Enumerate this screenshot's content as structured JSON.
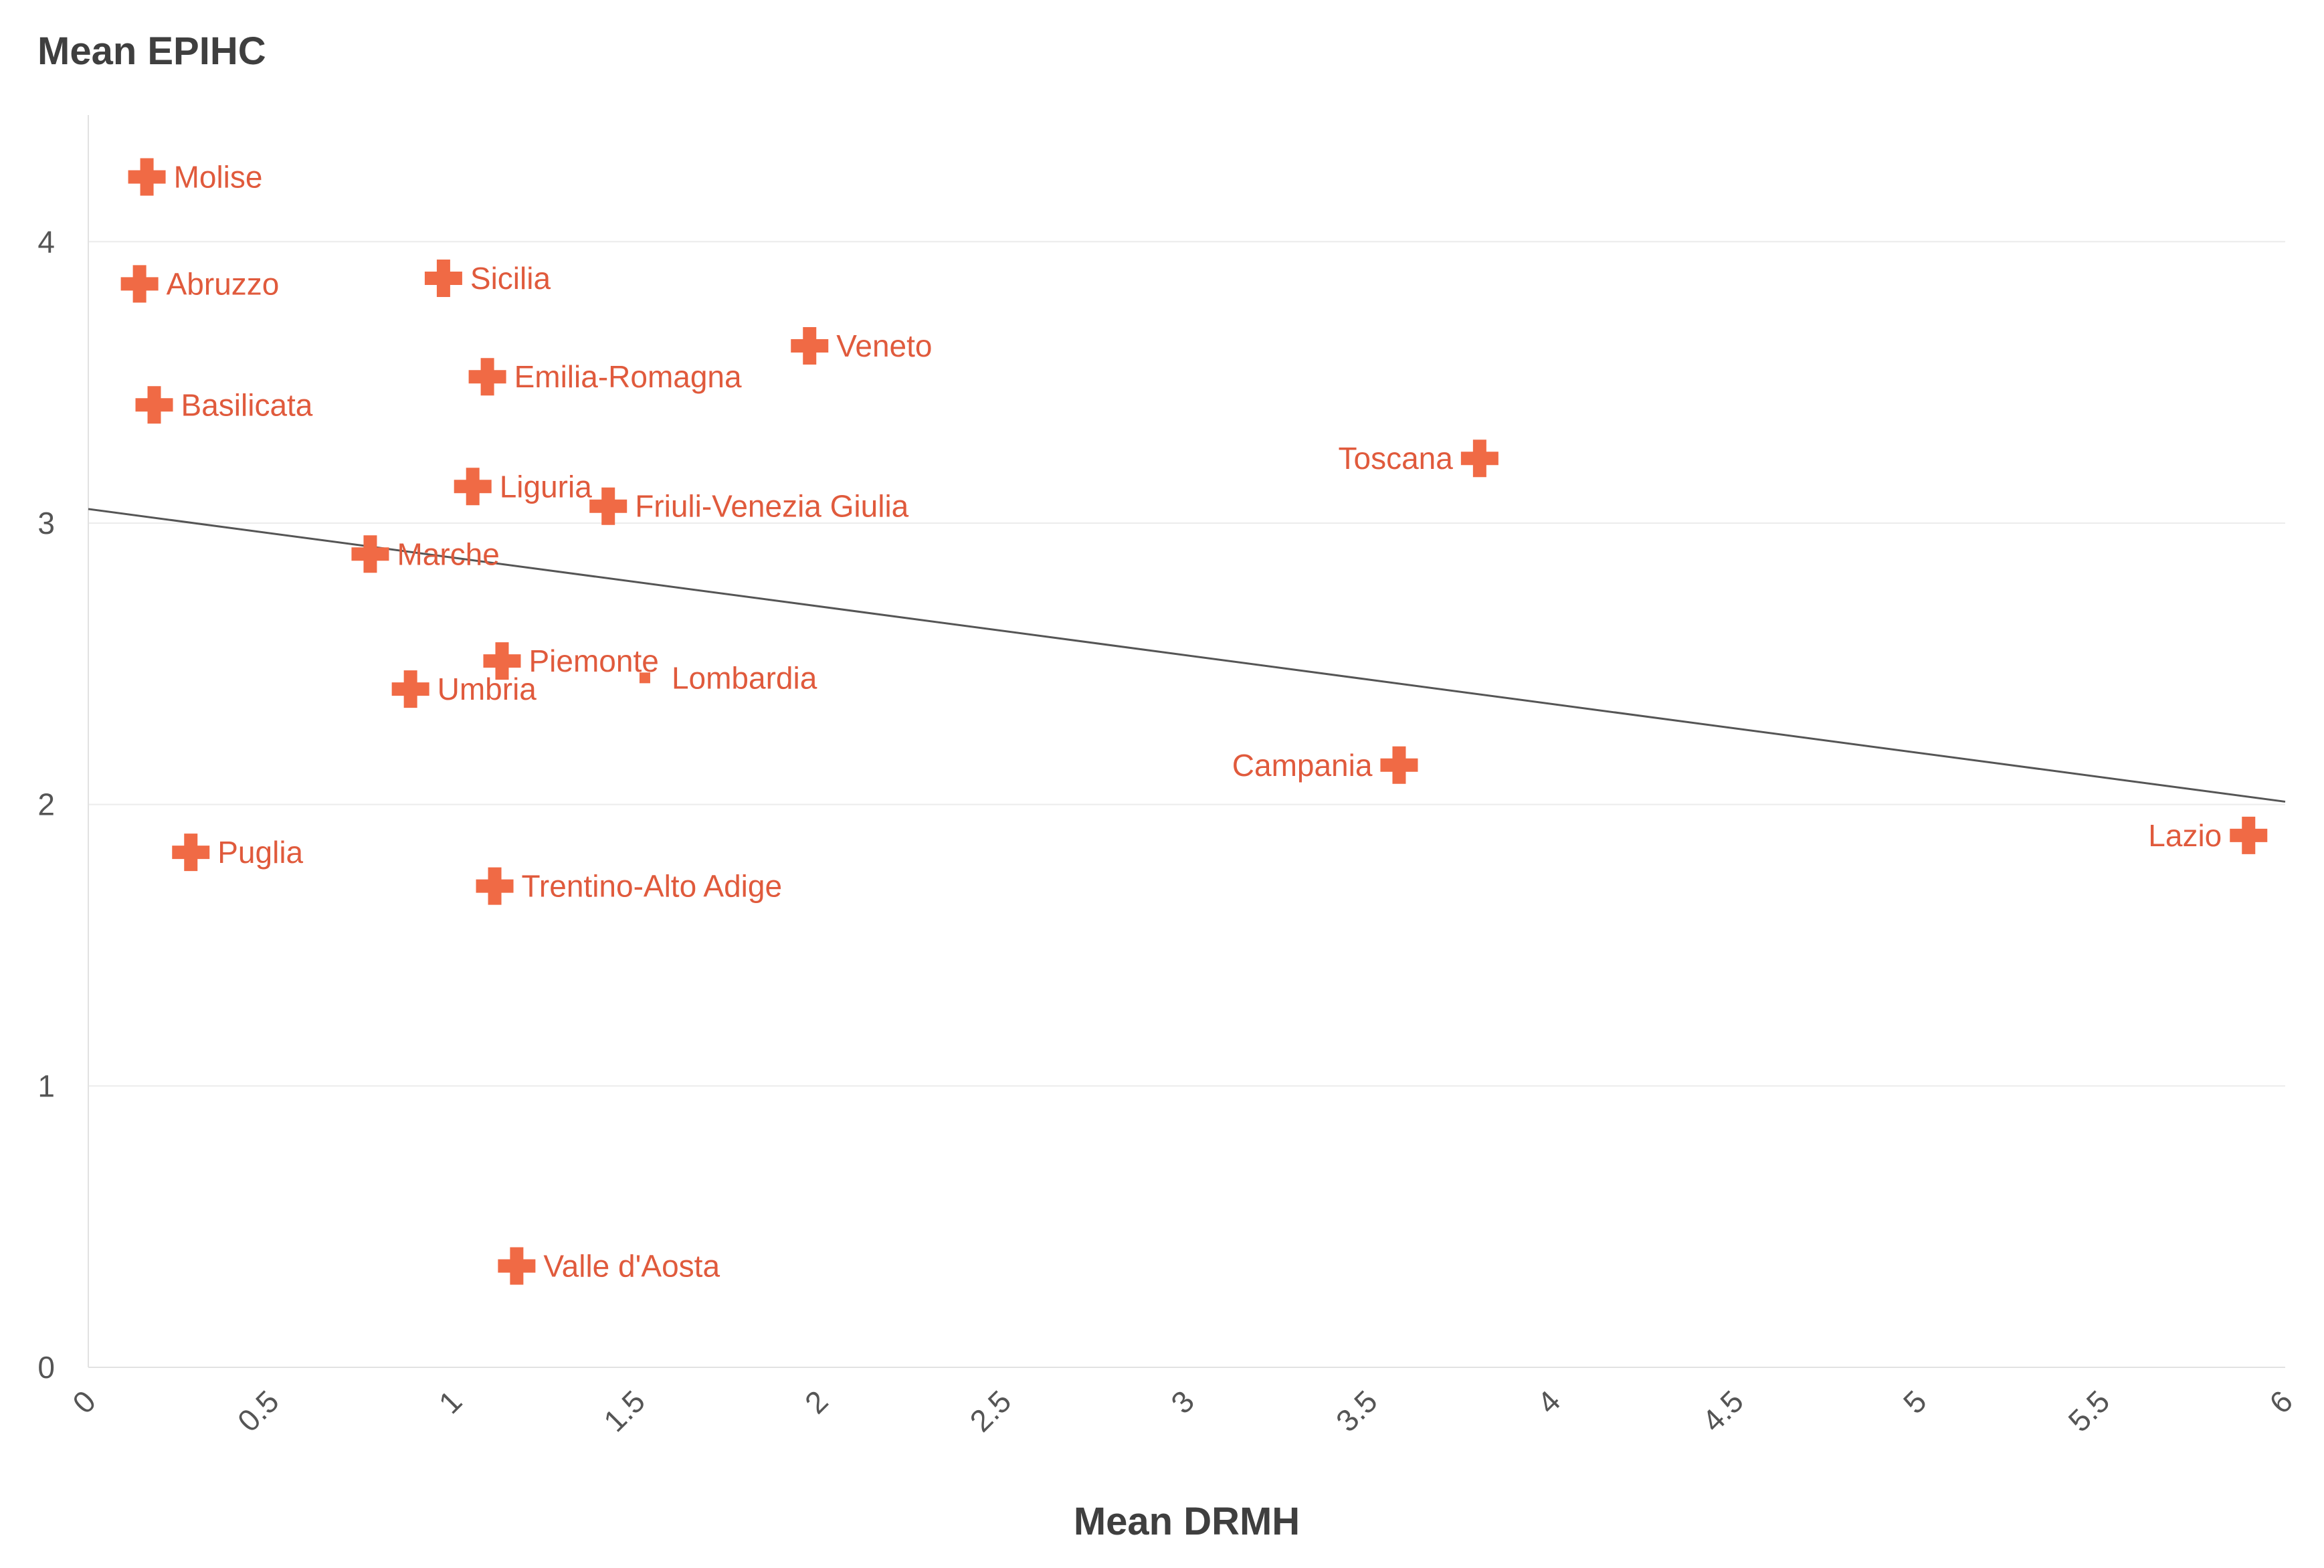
{
  "chart_data": {
    "type": "scatter",
    "title": "",
    "ylabel": "Mean EPIHC",
    "xlabel": "Mean DRMH",
    "xlim": [
      0,
      6
    ],
    "ylim": [
      0,
      4.45
    ],
    "x_ticks": [
      "0",
      "0.5",
      "1",
      "1.5",
      "2",
      "2.5",
      "3",
      "3.5",
      "4",
      "4.5",
      "5",
      "5.5",
      "6"
    ],
    "y_ticks": [
      "0",
      "1",
      "2",
      "3",
      "4"
    ],
    "grid": "horizontal",
    "marker_color": "#f06a45",
    "label_color": "#e05a3c",
    "trend_line": {
      "x": [
        0,
        6
      ],
      "y": [
        3.05,
        2.01
      ]
    },
    "points": [
      {
        "name": "Molise",
        "x": 0.16,
        "y": 4.23,
        "label_side": "right"
      },
      {
        "name": "Abruzzo",
        "x": 0.14,
        "y": 3.85,
        "label_side": "right"
      },
      {
        "name": "Sicilia",
        "x": 0.97,
        "y": 3.87,
        "label_side": "right"
      },
      {
        "name": "Veneto",
        "x": 1.97,
        "y": 3.63,
        "label_side": "right"
      },
      {
        "name": "Emilia-Romagna",
        "x": 1.09,
        "y": 3.52,
        "label_side": "right"
      },
      {
        "name": "Basilicata",
        "x": 0.18,
        "y": 3.42,
        "label_side": "right"
      },
      {
        "name": "Toscana",
        "x": 3.8,
        "y": 3.23,
        "label_side": "left"
      },
      {
        "name": "Liguria",
        "x": 1.05,
        "y": 3.13,
        "label_side": "right"
      },
      {
        "name": "Friuli-Venezia Giulia",
        "x": 1.42,
        "y": 3.06,
        "label_side": "right"
      },
      {
        "name": "Marche",
        "x": 0.77,
        "y": 2.89,
        "label_side": "right"
      },
      {
        "name": "Piemonte",
        "x": 1.13,
        "y": 2.51,
        "label_side": "right"
      },
      {
        "name": "Lombardia",
        "x": 1.52,
        "y": 2.45,
        "label_side": "right",
        "marker": "dot"
      },
      {
        "name": "Umbria",
        "x": 0.88,
        "y": 2.41,
        "label_side": "right"
      },
      {
        "name": "Campania",
        "x": 3.58,
        "y": 2.14,
        "label_side": "left"
      },
      {
        "name": "Lazio",
        "x": 5.9,
        "y": 1.89,
        "label_side": "left"
      },
      {
        "name": "Puglia",
        "x": 0.28,
        "y": 1.83,
        "label_side": "right"
      },
      {
        "name": "Trentino-Alto Adige",
        "x": 1.11,
        "y": 1.71,
        "label_side": "right"
      },
      {
        "name": "Valle d'Aosta",
        "x": 1.17,
        "y": 0.36,
        "label_side": "right"
      }
    ]
  }
}
